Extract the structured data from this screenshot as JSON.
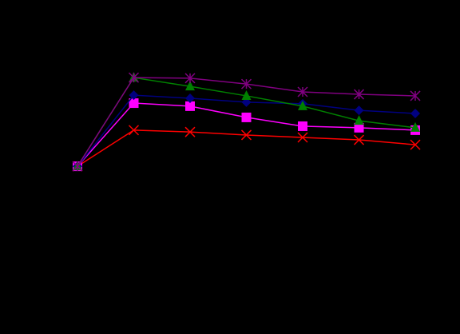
{
  "chart_data": {
    "type": "line",
    "categories": [
      null,
      null,
      null,
      null,
      null,
      null,
      null
    ],
    "ylim": [
      0,
      100
    ],
    "series": [
      {
        "color": "#ff0000",
        "marker": "x",
        "values": [
          50.5,
          62.4,
          61.8,
          60.8,
          60.0,
          59.2,
          57.6
        ]
      },
      {
        "color": "#ff00ff",
        "marker": "square",
        "values": [
          50.5,
          71.3,
          70.3,
          66.6,
          63.7,
          63.2,
          62.4
        ]
      },
      {
        "color": "#000080",
        "marker": "diamond",
        "values": [
          50.5,
          73.9,
          72.9,
          71.6,
          71.1,
          68.9,
          67.9
        ]
      },
      {
        "color": "#008000",
        "marker": "triangle",
        "values": [
          50.5,
          79.7,
          76.8,
          73.7,
          70.3,
          65.5,
          63.2
        ]
      },
      {
        "color": "#800080",
        "marker": "star",
        "values": [
          50.5,
          79.7,
          79.5,
          77.6,
          75.0,
          74.2,
          73.7
        ]
      }
    ]
  }
}
